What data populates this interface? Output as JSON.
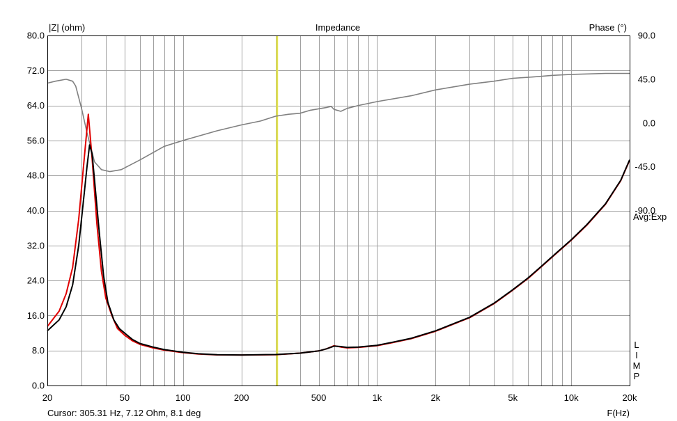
{
  "chart_data": {
    "type": "line",
    "title": "Impedance",
    "x_axis": {
      "label": "F(Hz)",
      "scale": "log",
      "range": [
        20,
        20000
      ],
      "tick_labels": [
        {
          "value": 20,
          "label": "20"
        },
        {
          "value": 50,
          "label": "50"
        },
        {
          "value": 100,
          "label": "100"
        },
        {
          "value": 200,
          "label": "200"
        },
        {
          "value": 500,
          "label": "500"
        },
        {
          "value": 1000,
          "label": "1k"
        },
        {
          "value": 2000,
          "label": "2k"
        },
        {
          "value": 5000,
          "label": "5k"
        },
        {
          "value": 10000,
          "label": "10k"
        },
        {
          "value": 20000,
          "label": "20k"
        }
      ],
      "minor_gridlines": [
        30,
        40,
        60,
        70,
        80,
        90,
        300,
        400,
        600,
        700,
        800,
        900,
        3000,
        4000,
        6000,
        7000,
        8000,
        9000
      ]
    },
    "y_left": {
      "label": "|Z| (ohm)",
      "range": [
        0,
        80
      ],
      "ticks": [
        "0.0",
        "8.0",
        "16.0",
        "24.0",
        "32.0",
        "40.0",
        "48.0",
        "56.0",
        "64.0",
        "72.0",
        "80.0"
      ]
    },
    "y_right": {
      "label": "Phase (°)",
      "range": [
        -270,
        90
      ],
      "ticks": [
        {
          "value": 90,
          "label": "90.0"
        },
        {
          "value": 45,
          "label": "45.0"
        },
        {
          "value": 0,
          "label": "0.0"
        },
        {
          "value": -45,
          "label": "-45.0"
        },
        {
          "value": -90,
          "label": "-90.0"
        }
      ]
    },
    "side_text": "Avg:Exp",
    "lim_letters": [
      "L",
      "I",
      "M",
      "P"
    ],
    "grid": true,
    "cursor": {
      "x": 305.31,
      "color": "#ffff80"
    },
    "cursor_readout": "Cursor: 305.31 Hz, 7.12 Ohm, 8.1 deg",
    "series": [
      {
        "axis": "left",
        "color": "#e00000",
        "points": [
          [
            20,
            13.5
          ],
          [
            23,
            17
          ],
          [
            25,
            21
          ],
          [
            27,
            27
          ],
          [
            29,
            38
          ],
          [
            31,
            52
          ],
          [
            32.5,
            62
          ],
          [
            34,
            52
          ],
          [
            36,
            37
          ],
          [
            38,
            26
          ],
          [
            40,
            20
          ],
          [
            43,
            16
          ],
          [
            46,
            13
          ],
          [
            50,
            11.5
          ],
          [
            55,
            10.2
          ],
          [
            60,
            9.4
          ],
          [
            70,
            8.6
          ],
          [
            80,
            8.1
          ],
          [
            100,
            7.5
          ],
          [
            120,
            7.2
          ],
          [
            150,
            7.0
          ],
          [
            200,
            6.95
          ],
          [
            300,
            7.05
          ],
          [
            400,
            7.4
          ],
          [
            500,
            7.9
          ],
          [
            550,
            8.4
          ],
          [
            600,
            9.1
          ],
          [
            650,
            8.8
          ],
          [
            700,
            8.6
          ],
          [
            800,
            8.7
          ],
          [
            1000,
            9.1
          ],
          [
            1200,
            9.8
          ],
          [
            1500,
            10.7
          ],
          [
            2000,
            12.4
          ],
          [
            3000,
            15.5
          ],
          [
            4000,
            18.7
          ],
          [
            5000,
            21.8
          ],
          [
            6000,
            24.5
          ],
          [
            7000,
            27.1
          ],
          [
            8000,
            29.4
          ],
          [
            10000,
            33.2
          ],
          [
            12000,
            36.6
          ],
          [
            15000,
            41.4
          ],
          [
            18000,
            46.8
          ],
          [
            20000,
            51.5
          ]
        ]
      },
      {
        "axis": "left",
        "color": "#000000",
        "points": [
          [
            20,
            12.5
          ],
          [
            23,
            15
          ],
          [
            25,
            18
          ],
          [
            27,
            23
          ],
          [
            29,
            32
          ],
          [
            31,
            44
          ],
          [
            32,
            50
          ],
          [
            33,
            55
          ],
          [
            34,
            53
          ],
          [
            35,
            47
          ],
          [
            37,
            35
          ],
          [
            39,
            25
          ],
          [
            41,
            19
          ],
          [
            44,
            15
          ],
          [
            47,
            13
          ],
          [
            50,
            12
          ],
          [
            55,
            10.5
          ],
          [
            60,
            9.6
          ],
          [
            70,
            8.8
          ],
          [
            80,
            8.2
          ],
          [
            100,
            7.6
          ],
          [
            120,
            7.25
          ],
          [
            150,
            7.05
          ],
          [
            200,
            6.98
          ],
          [
            300,
            7.08
          ],
          [
            400,
            7.4
          ],
          [
            500,
            7.9
          ],
          [
            550,
            8.4
          ],
          [
            600,
            9.0
          ],
          [
            650,
            8.9
          ],
          [
            700,
            8.7
          ],
          [
            800,
            8.8
          ],
          [
            1000,
            9.2
          ],
          [
            1200,
            9.9
          ],
          [
            1500,
            10.8
          ],
          [
            2000,
            12.5
          ],
          [
            3000,
            15.6
          ],
          [
            4000,
            18.8
          ],
          [
            5000,
            21.9
          ],
          [
            6000,
            24.6
          ],
          [
            7000,
            27.2
          ],
          [
            8000,
            29.5
          ],
          [
            10000,
            33.3
          ],
          [
            12000,
            36.7
          ],
          [
            15000,
            41.5
          ],
          [
            18000,
            46.9
          ],
          [
            20000,
            51.6
          ]
        ]
      },
      {
        "axis": "right",
        "color": "#808080",
        "points": [
          [
            20,
            41
          ],
          [
            22,
            43
          ],
          [
            25,
            45
          ],
          [
            27,
            43
          ],
          [
            28,
            38
          ],
          [
            30,
            15
          ],
          [
            32,
            -10
          ],
          [
            35,
            -40
          ],
          [
            38,
            -48
          ],
          [
            42,
            -50
          ],
          [
            48,
            -48
          ],
          [
            60,
            -38
          ],
          [
            80,
            -24
          ],
          [
            100,
            -18
          ],
          [
            150,
            -8
          ],
          [
            200,
            -2
          ],
          [
            250,
            2
          ],
          [
            300,
            7
          ],
          [
            350,
            9
          ],
          [
            400,
            10
          ],
          [
            450,
            13
          ],
          [
            550,
            16
          ],
          [
            580,
            17
          ],
          [
            600,
            14
          ],
          [
            650,
            12
          ],
          [
            700,
            15
          ],
          [
            800,
            18
          ],
          [
            1000,
            22
          ],
          [
            1500,
            28
          ],
          [
            2000,
            34
          ],
          [
            3000,
            40
          ],
          [
            4000,
            43
          ],
          [
            5000,
            46
          ],
          [
            6000,
            47
          ],
          [
            7000,
            48
          ],
          [
            8000,
            49
          ],
          [
            10000,
            50
          ],
          [
            15000,
            51
          ],
          [
            20000,
            51
          ]
        ]
      }
    ]
  }
}
